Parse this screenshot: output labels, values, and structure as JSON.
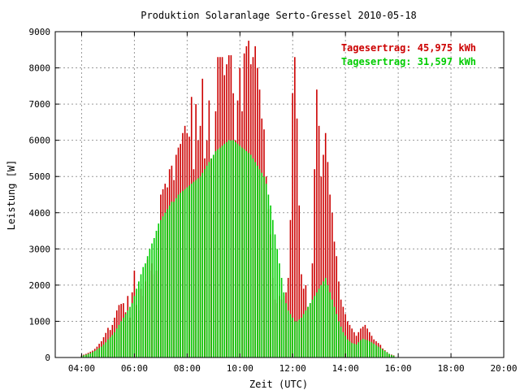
{
  "chart_data": {
    "type": "bar",
    "title": "Produktion Solaranlage Serto-Gressel 2010-05-18",
    "xlabel": "Zeit (UTC)",
    "ylabel": "Leistung [W]",
    "xlim": [
      3.0,
      20.0
    ],
    "ylim": [
      0,
      9000
    ],
    "grid": true,
    "legend_position": "top-right",
    "x_ticks": [
      "04:00",
      "06:00",
      "08:00",
      "10:00",
      "12:00",
      "14:00",
      "16:00",
      "18:00",
      "20:00"
    ],
    "y_ticks": [
      "0",
      "1000",
      "2000",
      "3000",
      "4000",
      "5000",
      "6000",
      "7000",
      "8000",
      "9000"
    ],
    "time_step_hours": 0.0833,
    "series": [
      {
        "name": "Tagesertrag: 45,975 kWh",
        "color": "#cc0000",
        "start_hour": 4.0,
        "values": [
          60,
          80,
          100,
          130,
          160,
          190,
          240,
          300,
          380,
          450,
          560,
          680,
          820,
          760,
          900,
          1100,
          1300,
          1450,
          1480,
          1500,
          1250,
          1700,
          1100,
          1800,
          2400,
          1450,
          1300,
          1900,
          1700,
          2100,
          2700,
          2400,
          2600,
          2300,
          2400,
          3500,
          4500,
          4650,
          4800,
          4700,
          5200,
          5300,
          4900,
          5600,
          5800,
          5900,
          6200,
          6400,
          6200,
          6100,
          7200,
          5200,
          7000,
          6000,
          6400,
          7700,
          5500,
          6000,
          7100,
          5500,
          4000,
          6800,
          8300,
          8300,
          8300,
          7800,
          8100,
          8350,
          8350,
          7300,
          6000,
          7100,
          8000,
          6800,
          8400,
          8600,
          8750,
          8100,
          8300,
          8600,
          8000,
          7400,
          6600,
          6300,
          5000,
          4100,
          3400,
          2200,
          1600,
          1500,
          1700,
          1600,
          1700,
          1800,
          2200,
          3800,
          7300,
          8300,
          6600,
          4200,
          2300,
          1900,
          2000,
          1400,
          1500,
          2600,
          5200,
          7400,
          6400,
          5000,
          5600,
          6200,
          5400,
          4500,
          4000,
          3200,
          2800,
          2100,
          1600,
          1400,
          1200,
          1000,
          900,
          800,
          700,
          600,
          700,
          800,
          850,
          900,
          800,
          700,
          600,
          500,
          450,
          400,
          350,
          250,
          200,
          150,
          100,
          80,
          60
        ]
      },
      {
        "name": "Tagesertrag: 31,597 kWh",
        "color": "#00cc00",
        "start_hour": 4.0,
        "values": [
          50,
          60,
          80,
          100,
          120,
          150,
          180,
          220,
          260,
          300,
          360,
          420,
          500,
          560,
          620,
          700,
          800,
          900,
          1000,
          1100,
          1200,
          1300,
          1400,
          1500,
          1700,
          1900,
          2100,
          2300,
          2500,
          2600,
          2800,
          3000,
          3150,
          3300,
          3500,
          3700,
          3800,
          3900,
          4000,
          4100,
          4200,
          4300,
          4300,
          4400,
          4500,
          4550,
          4600,
          4650,
          4700,
          4750,
          4800,
          4850,
          4900,
          4950,
          5000,
          5100,
          5200,
          5300,
          5400,
          5500,
          5600,
          5700,
          5750,
          5800,
          5850,
          5900,
          5950,
          6000,
          6000,
          6000,
          5950,
          5900,
          5850,
          5800,
          5750,
          5700,
          5650,
          5600,
          5500,
          5400,
          5300,
          5200,
          5100,
          5000,
          4800,
          4500,
          4200,
          3800,
          3400,
          3000,
          2600,
          2200,
          1800,
          1500,
          1300,
          1200,
          1100,
          1000,
          1000,
          1050,
          1100,
          1200,
          1300,
          1400,
          1500,
          1600,
          1700,
          1800,
          1900,
          2000,
          2100,
          2200,
          2000,
          1800,
          1600,
          1400,
          1200,
          1000,
          850,
          700,
          600,
          500,
          450,
          400,
          380,
          360,
          420,
          480,
          520,
          500,
          480,
          450,
          420,
          380,
          340,
          300,
          260,
          220,
          180,
          140,
          100,
          70,
          50
        ]
      }
    ]
  }
}
